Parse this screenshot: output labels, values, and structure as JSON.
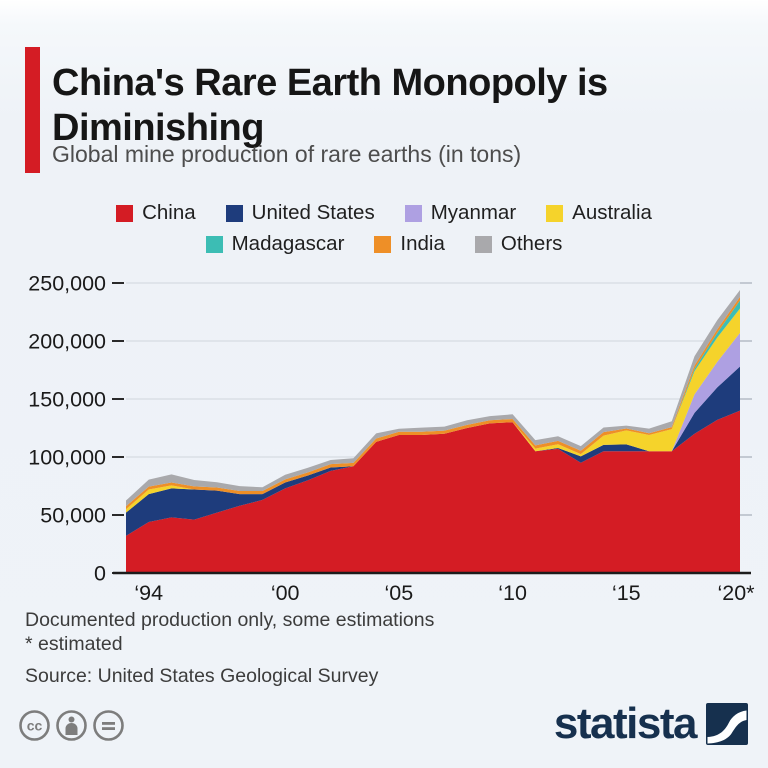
{
  "header": {
    "title": "China's Rare Earth Monopoly is Diminishing",
    "subtitle": "Global mine production of rare earths (in tons)",
    "accent_color": "#d41c24"
  },
  "legend": {
    "rows": [
      [
        "China",
        "United States",
        "Myanmar",
        "Australia"
      ],
      [
        "Madagascar",
        "India",
        "Others"
      ]
    ]
  },
  "chart_data": {
    "type": "area",
    "stacked": true,
    "units": "tons",
    "x": [
      1993,
      1994,
      1995,
      1996,
      1997,
      1998,
      1999,
      2000,
      2001,
      2002,
      2003,
      2004,
      2005,
      2006,
      2007,
      2008,
      2009,
      2010,
      2011,
      2012,
      2013,
      2014,
      2015,
      2016,
      2017,
      2018,
      2019,
      2020
    ],
    "series": [
      {
        "name": "China",
        "color": "#d41c24",
        "values": [
          32000,
          44000,
          48000,
          46000,
          52000,
          58000,
          63000,
          73000,
          80000,
          88000,
          92000,
          113000,
          119000,
          119000,
          120000,
          125000,
          129000,
          130000,
          105000,
          107000,
          95000,
          105000,
          105000,
          105000,
          105000,
          120000,
          132000,
          140000
        ]
      },
      {
        "name": "United States",
        "color": "#1e3c7c",
        "values": [
          20000,
          24000,
          25000,
          26000,
          19000,
          10000,
          5000,
          5000,
          4000,
          3000,
          0,
          0,
          0,
          0,
          0,
          0,
          0,
          0,
          0,
          800,
          5500,
          5400,
          5900,
          0,
          0,
          18000,
          28000,
          38000
        ]
      },
      {
        "name": "Myanmar",
        "color": "#aea0e2",
        "values": [
          0,
          0,
          0,
          0,
          0,
          0,
          0,
          0,
          0,
          0,
          0,
          0,
          0,
          0,
          0,
          0,
          0,
          0,
          0,
          0,
          0,
          0,
          0,
          0,
          0,
          16000,
          22000,
          29000
        ]
      },
      {
        "name": "Australia",
        "color": "#f5d32b",
        "values": [
          3000,
          4000,
          2500,
          0,
          0,
          0,
          0,
          0,
          0,
          0,
          0,
          0,
          0,
          0,
          0,
          0,
          0,
          0,
          2200,
          3200,
          2000,
          8000,
          12000,
          14000,
          19000,
          20000,
          21000,
          21000
        ]
      },
      {
        "name": "Madagascar",
        "color": "#3cbdb4",
        "values": [
          0,
          0,
          0,
          0,
          0,
          0,
          0,
          0,
          0,
          0,
          0,
          0,
          0,
          0,
          0,
          0,
          0,
          0,
          0,
          0,
          0,
          0,
          0,
          0,
          0,
          2000,
          4000,
          7000
        ]
      },
      {
        "name": "India",
        "color": "#ee8f27",
        "values": [
          2500,
          2500,
          2500,
          2700,
          2700,
          2700,
          2700,
          2700,
          2700,
          2900,
          2900,
          2900,
          2800,
          2800,
          2700,
          2700,
          2700,
          2800,
          2800,
          2900,
          2900,
          3000,
          1700,
          1500,
          1800,
          2900,
          3000,
          3000
        ]
      },
      {
        "name": "Others",
        "color": "#a9a9ac",
        "values": [
          5000,
          6000,
          7000,
          5500,
          4500,
          4200,
          3200,
          4000,
          4000,
          3500,
          4000,
          4500,
          2500,
          3500,
          3500,
          4000,
          3500,
          4000,
          4500,
          4000,
          4000,
          4000,
          2500,
          4000,
          5000,
          8000,
          8000,
          6000
        ]
      }
    ],
    "ylim": [
      0,
      250000
    ],
    "y_ticks": [
      {
        "value": 250000,
        "label": "250,000"
      },
      {
        "value": 200000,
        "label": "200,000"
      },
      {
        "value": 150000,
        "label": "150,000"
      },
      {
        "value": 100000,
        "label": "100,000"
      },
      {
        "value": 50000,
        "label": "50,000"
      },
      {
        "value": 0,
        "label": "0"
      }
    ],
    "x_ticks": [
      {
        "year": 1994,
        "label": "‘94"
      },
      {
        "year": 2000,
        "label": "‘00"
      },
      {
        "year": 2005,
        "label": "‘05"
      },
      {
        "year": 2010,
        "label": "‘10"
      },
      {
        "year": 2015,
        "label": "‘15"
      },
      {
        "year": 2020,
        "label": "‘20*"
      }
    ],
    "grid": true,
    "legend_position": "top"
  },
  "footnotes": {
    "line1": "Documented production only, some estimations",
    "line2": "* estimated",
    "source": "Source: United States Geological Survey"
  },
  "branding": {
    "logo_text": "statista",
    "logo_color": "#16304e",
    "license_badges": [
      "cc",
      "by",
      "nd"
    ]
  }
}
